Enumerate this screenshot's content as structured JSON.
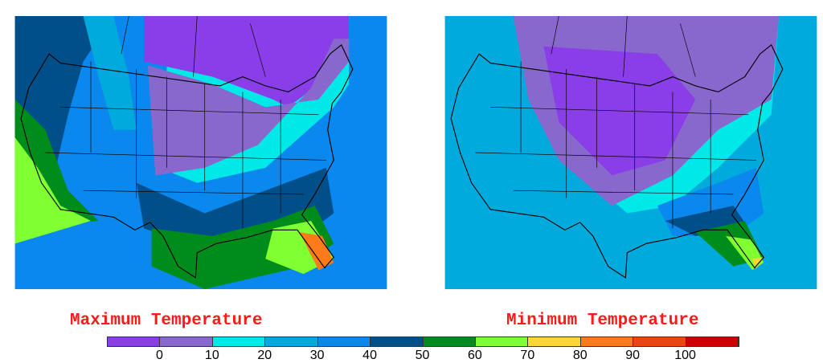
{
  "maps": [
    {
      "title": "Maximum Temperature"
    },
    {
      "title": "Minimum Temperature"
    }
  ],
  "legend": {
    "colors": [
      "#8a3ee8",
      "#8868cc",
      "#00e8e8",
      "#00aadd",
      "#0a88ee",
      "#004f88",
      "#008c1a",
      "#80ff33",
      "#ffd633",
      "#ff7a1a",
      "#ee4411",
      "#cc0000"
    ],
    "labels": [
      "0",
      "10",
      "20",
      "30",
      "40",
      "50",
      "60",
      "70",
      "80",
      "90",
      "100"
    ]
  }
}
